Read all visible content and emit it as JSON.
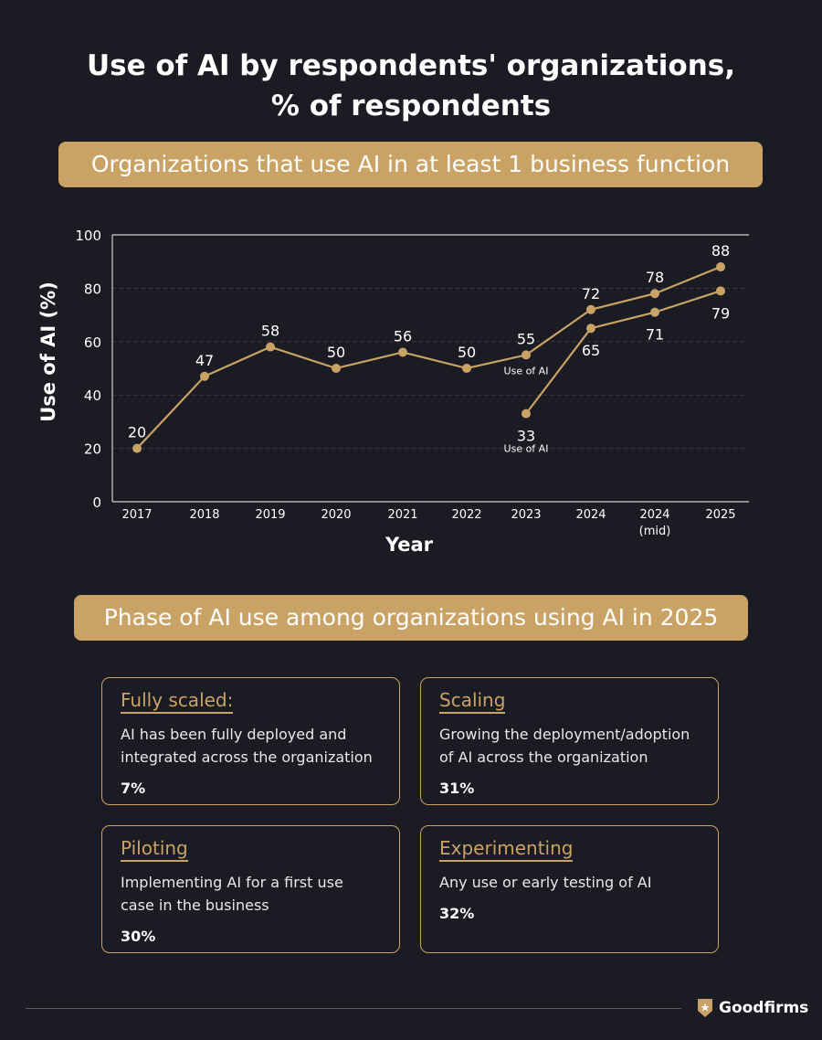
{
  "title_line1": "Use of AI by respondents' organizations,",
  "title_line2": "% of respondents",
  "section1_banner": "Organizations that use AI in at least 1 business function",
  "section2_banner": "Phase of AI use among organizations using AI in 2025",
  "colors": {
    "background": "#1b1c23",
    "accent": "#c9a265",
    "text": "#ffffff"
  },
  "chart_data": {
    "type": "line",
    "title": "Organizations that use AI in at least 1 business function",
    "xlabel": "Year",
    "ylabel": "Use of AI (%)",
    "ylim": [
      0,
      100
    ],
    "yticks": [
      0,
      20,
      40,
      60,
      80,
      100
    ],
    "categories": [
      "2017",
      "2018",
      "2019",
      "2020",
      "2021",
      "2022",
      "2023",
      "2024",
      "2024\n(mid)",
      "2025"
    ],
    "grid": "horizontal dashed",
    "series": [
      {
        "name": "Use of AI",
        "values": [
          20,
          47,
          58,
          50,
          56,
          50,
          55,
          72,
          78,
          88
        ]
      },
      {
        "name": "Use of AI",
        "values": [
          null,
          null,
          null,
          null,
          null,
          null,
          33,
          65,
          71,
          79
        ]
      }
    ]
  },
  "phases": [
    {
      "title": "Fully scaled:",
      "desc": "AI has been fully deployed and integrated across the organization",
      "pct": "7%"
    },
    {
      "title": "Scaling",
      "desc": "Growing the deployment/adoption of AI across the organization",
      "pct": "31%"
    },
    {
      "title": "Piloting",
      "desc": "Implementing AI for a first use case in the business",
      "pct": "30%"
    },
    {
      "title": "Experimenting",
      "desc": "Any use or early testing of AI",
      "pct": "32%"
    }
  ],
  "brand": {
    "name": "Goodfirms",
    "icon": "shield-star-icon"
  }
}
